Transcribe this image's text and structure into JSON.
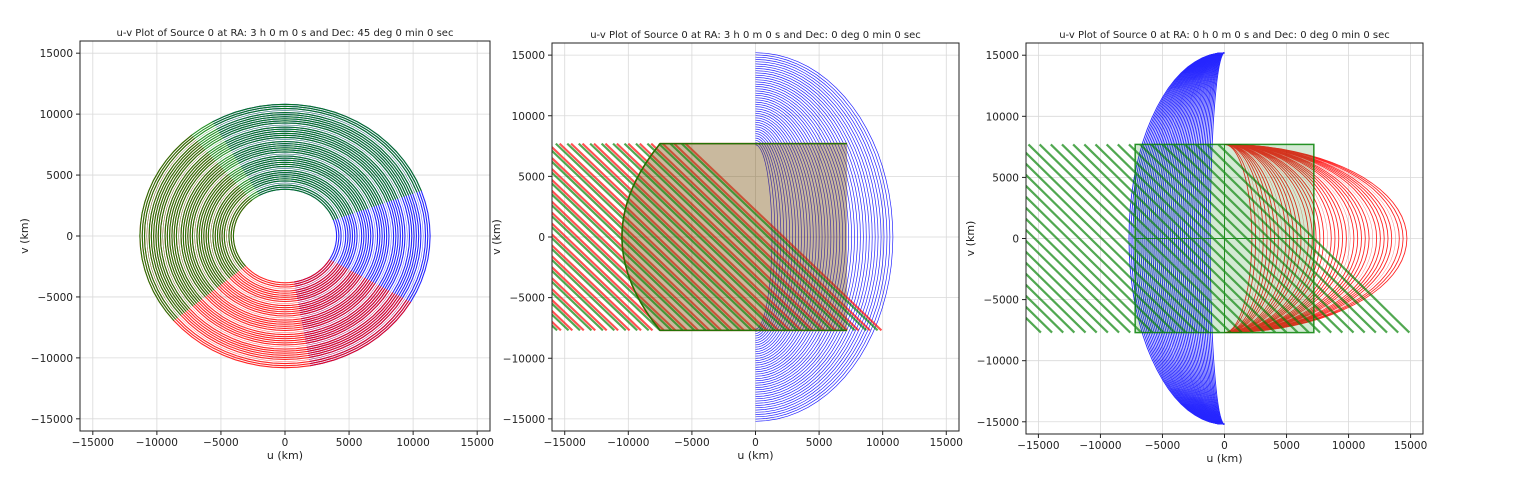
{
  "chart_data": [
    {
      "type": "scatter",
      "title": "u-v Plot of Source 0 at RA: 3 h 0 m 0 s and Dec: 45 deg 0 min 0 sec",
      "xlabel": "u (km)",
      "ylabel": "v (km)",
      "xlim": [
        -16000,
        16000
      ],
      "ylim": [
        -16000,
        16000
      ],
      "xticks": [
        -15000,
        -10000,
        -5000,
        0,
        5000,
        10000,
        15000
      ],
      "yticks": [
        -15000,
        -10000,
        -5000,
        0,
        5000,
        10000,
        15000
      ],
      "xtick_labels": [
        "−15000",
        "−10000",
        "−5000",
        "0",
        "5000",
        "10000",
        "15000"
      ],
      "ytick_labels": [
        "−15000",
        "−10000",
        "−5000",
        "0",
        "5000",
        "10000",
        "15000"
      ],
      "grid": true,
      "series_colors": [
        "#0000ff",
        "#ff0000",
        "#008000"
      ],
      "series": [
        {
          "color": "#0000ff",
          "r": 11500,
          "dec": 45,
          "cx": 0,
          "cy": 0,
          "start_deg": -80,
          "span_deg": 200
        },
        {
          "color": "#ff0000",
          "r": 11500,
          "dec": 45,
          "cx": 0,
          "cy": 0,
          "start_deg": 130,
          "span_deg": 200
        },
        {
          "color": "#008000",
          "r": 11500,
          "dec": 45,
          "cx": 0,
          "cy": 0,
          "start_deg": 20,
          "span_deg": 200
        }
      ]
    },
    {
      "type": "scatter",
      "title": "u-v Plot of Source 0 at RA: 3 h 0 m 0 s and Dec: 0 deg 0 min 0 sec",
      "xlabel": "u (km)",
      "ylabel": "v (km)",
      "xlim": [
        -16000,
        16000
      ],
      "ylim": [
        -16000,
        16000
      ],
      "xticks": [
        -15000,
        -10000,
        -5000,
        0,
        5000,
        10000,
        15000
      ],
      "yticks": [
        -15000,
        -10000,
        -5000,
        0,
        5000,
        10000,
        15000
      ],
      "xtick_labels": [
        "−15000",
        "−10000",
        "−5000",
        "0",
        "5000",
        "10000",
        "15000"
      ],
      "ytick_labels": [
        "−15000",
        "−10000",
        "−5000",
        "0",
        "5000",
        "10000",
        "15000"
      ],
      "grid": true,
      "series_colors": [
        "#0000ff",
        "#ff0000",
        "#008000"
      ],
      "series": [
        {
          "color": "#0000ff",
          "shape": "right-lune",
          "u_min": 0,
          "u_max": 10800,
          "v_max": 15200
        },
        {
          "color": "#ff0000",
          "shape": "capsule",
          "u_min": -12500,
          "u_max": 7200,
          "v_max": 7700
        },
        {
          "color": "#008000",
          "shape": "capsule",
          "u_min": -12500,
          "u_max": 7200,
          "v_max": 7700
        }
      ]
    },
    {
      "type": "scatter",
      "title": "u-v Plot of Source 0 at RA: 0 h 0 m 0 s and Dec: 0 deg 0 min 0 sec",
      "xlabel": "u (km)",
      "ylabel": "v (km)",
      "xlim": [
        -16000,
        16000
      ],
      "ylim": [
        -16000,
        16000
      ],
      "xticks": [
        -15000,
        -10000,
        -5000,
        0,
        5000,
        10000,
        15000
      ],
      "yticks": [
        -15000,
        -10000,
        -5000,
        0,
        5000,
        10000,
        15000
      ],
      "xtick_labels": [
        "−15000",
        "−10000",
        "−5000",
        "0",
        "5000",
        "10000",
        "15000"
      ],
      "ytick_labels": [
        "−15000",
        "−10000",
        "−5000",
        "0",
        "5000",
        "10000",
        "15000"
      ],
      "grid": true,
      "series_colors": [
        "#0000ff",
        "#ff0000",
        "#008000"
      ],
      "series": [
        {
          "color": "#0000ff",
          "shape": "left-dome",
          "u_min": -7700,
          "u_max": 0,
          "v_max": 15200
        },
        {
          "color": "#ff0000",
          "shape": "right-dome",
          "u_min": 0,
          "u_max": 14700,
          "v_max": 7700
        },
        {
          "color": "#008000",
          "shape": "box",
          "u_min": -7200,
          "u_max": 7200,
          "v_max": 7700
        }
      ]
    }
  ]
}
